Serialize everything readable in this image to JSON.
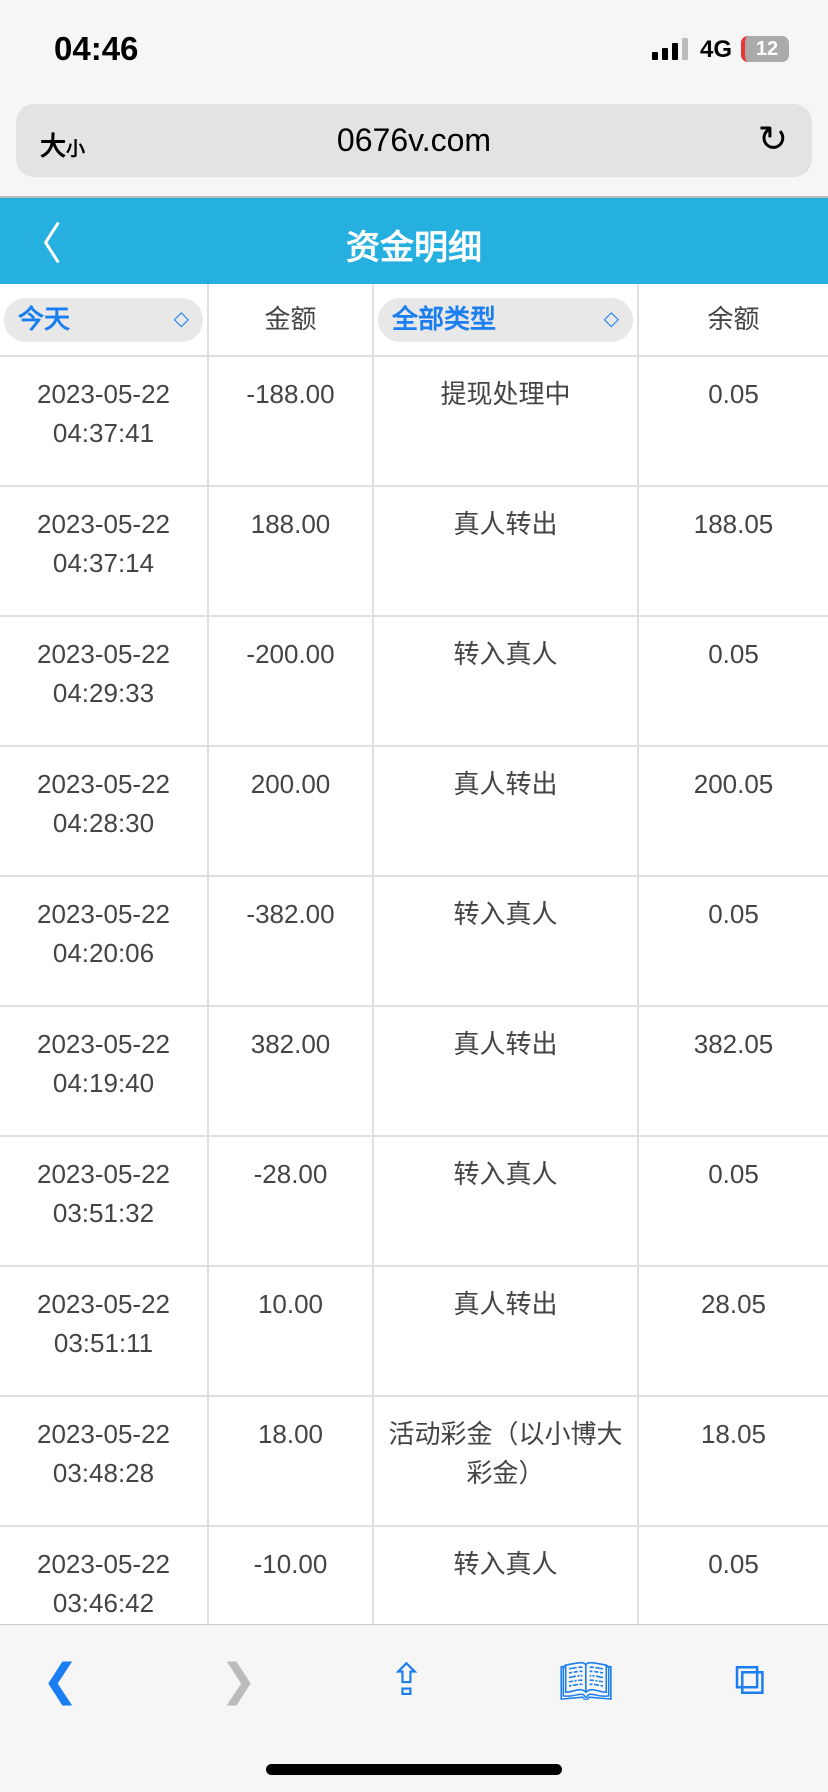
{
  "status": {
    "time": "04:46",
    "network": "4G",
    "battery": "12"
  },
  "browser": {
    "text_size": "大",
    "text_size_small": "小",
    "domain": "0676v.com"
  },
  "header": {
    "title": "资金明细"
  },
  "table": {
    "date_filter": "今天",
    "amount_header": "金额",
    "type_filter": "全部类型",
    "balance_header": "余额",
    "rows": [
      {
        "date": "2023-05-22",
        "time": "04:37:41",
        "amount": "-188.00",
        "type": "提现处理中",
        "balance": "0.05"
      },
      {
        "date": "2023-05-22",
        "time": "04:37:14",
        "amount": "188.00",
        "type": "真人转出",
        "balance": "188.05"
      },
      {
        "date": "2023-05-22",
        "time": "04:29:33",
        "amount": "-200.00",
        "type": "转入真人",
        "balance": "0.05"
      },
      {
        "date": "2023-05-22",
        "time": "04:28:30",
        "amount": "200.00",
        "type": "真人转出",
        "balance": "200.05"
      },
      {
        "date": "2023-05-22",
        "time": "04:20:06",
        "amount": "-382.00",
        "type": "转入真人",
        "balance": "0.05"
      },
      {
        "date": "2023-05-22",
        "time": "04:19:40",
        "amount": "382.00",
        "type": "真人转出",
        "balance": "382.05"
      },
      {
        "date": "2023-05-22",
        "time": "03:51:32",
        "amount": "-28.00",
        "type": "转入真人",
        "balance": "0.05"
      },
      {
        "date": "2023-05-22",
        "time": "03:51:11",
        "amount": "10.00",
        "type": "真人转出",
        "balance": "28.05"
      },
      {
        "date": "2023-05-22",
        "time": "03:48:28",
        "amount": "18.00",
        "type": "活动彩金（以小博大彩金）",
        "balance": "18.05"
      },
      {
        "date": "2023-05-22",
        "time": "03:46:42",
        "amount": "-10.00",
        "type": "转入真人",
        "balance": "0.05"
      }
    ]
  },
  "colors": {
    "header": "#25b0e0",
    "accent": "#1a7ef0"
  }
}
